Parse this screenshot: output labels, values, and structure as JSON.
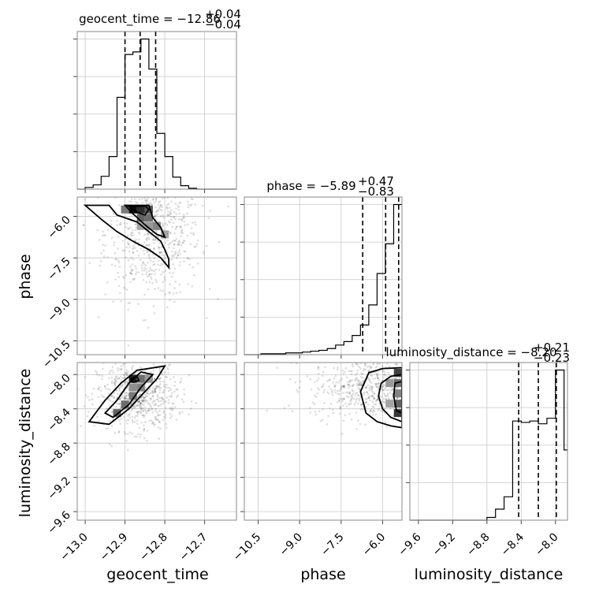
{
  "chart_data": {
    "type": "corner",
    "parameters": [
      "geocent_time",
      "phase",
      "luminosity_distance"
    ],
    "diagonal": [
      {
        "param": "geocent_time",
        "title_name": "geocent_time",
        "median": "−12.86",
        "plus": "+0.04",
        "minus": "−0.04",
        "quantiles": [
          -12.9,
          -12.862,
          -12.823
        ],
        "xlim": [
          -13.02,
          -12.62
        ],
        "bin_edges": [
          -13.02,
          -13.0,
          -12.98,
          -12.96,
          -12.94,
          -12.92,
          -12.9,
          -12.88,
          -12.86,
          -12.84,
          -12.82,
          -12.8,
          -12.78,
          -12.76,
          -12.74,
          -12.72,
          -12.7,
          -12.68,
          -12.66,
          -12.64,
          -12.62
        ],
        "counts": [
          0,
          2,
          5,
          15,
          38,
          107,
          157,
          160,
          175,
          140,
          65,
          38,
          14,
          4,
          1,
          0,
          0,
          0,
          0,
          0
        ]
      },
      {
        "param": "phase",
        "title_name": "phase",
        "median": "−5.89",
        "plus": "+0.47",
        "minus": "−0.83",
        "quantiles": [
          -6.72,
          -5.89,
          -5.42
        ],
        "xlim": [
          -11.0,
          -5.3
        ],
        "bin_edges": [
          -11.0,
          -10.7,
          -10.4,
          -10.1,
          -9.8,
          -9.5,
          -9.2,
          -8.9,
          -8.6,
          -8.3,
          -8.0,
          -7.7,
          -7.4,
          -7.1,
          -6.8,
          -6.5,
          -6.2,
          -5.9,
          -5.6,
          -5.3
        ],
        "counts": [
          0,
          0,
          1,
          1,
          1,
          2,
          2,
          3,
          4,
          5,
          7,
          11,
          15,
          22,
          34,
          57,
          93,
          127,
          172
        ]
      },
      {
        "param": "luminosity_distance",
        "title_name": "luminosity_distance",
        "median": "−8.20",
        "plus": "+0.21",
        "minus": "−0.23",
        "quantiles": [
          -8.43,
          -8.2,
          -7.99
        ],
        "xlim": [
          -9.7,
          -7.86
        ],
        "bin_edges": [
          -9.7,
          -9.6,
          -9.5,
          -9.4,
          -9.3,
          -9.2,
          -9.1,
          -9.0,
          -8.9,
          -8.8,
          -8.7,
          -8.6,
          -8.5,
          -8.4,
          -8.3,
          -8.2,
          -8.1,
          -8.0,
          -7.9,
          -7.86
        ],
        "counts": [
          0,
          0,
          0,
          0,
          0,
          0,
          0,
          0,
          0,
          2,
          8,
          17,
          72,
          71,
          72,
          70,
          74,
          109,
          51
        ]
      }
    ],
    "axes": {
      "geocent_time": {
        "ticks": [
          -13.0,
          -12.9,
          -12.8,
          -12.7
        ],
        "labels": [
          "−13.0",
          "−12.9",
          "−12.8",
          "−12.7"
        ]
      },
      "phase": {
        "ticks": [
          -10.5,
          -9.0,
          -7.5,
          -6.0
        ],
        "labels": [
          "−10.5",
          "−9.0",
          "−7.5",
          "−6.0"
        ]
      },
      "luminosity_distance": {
        "ticks": [
          -9.6,
          -9.2,
          -8.8,
          -8.4,
          -8.0
        ],
        "labels": [
          "−9.6",
          "−9.2",
          "−8.8",
          "−8.4",
          "−8.0"
        ]
      }
    },
    "panel_ylim": {
      "phase": [
        -11.0,
        -5.3
      ],
      "luminosity_distance": [
        -9.7,
        -7.86
      ]
    },
    "pairs": [
      {
        "x": "geocent_time",
        "y": "phase",
        "density_cells": [
          {
            "x": -12.88,
            "y": -5.75,
            "v": 1.0
          },
          {
            "x": -12.86,
            "y": -5.75,
            "v": 0.85
          },
          {
            "x": -12.84,
            "y": -5.75,
            "v": 0.65
          },
          {
            "x": -12.9,
            "y": -5.75,
            "v": 0.5
          },
          {
            "x": -12.86,
            "y": -6.05,
            "v": 0.6
          },
          {
            "x": -12.84,
            "y": -6.05,
            "v": 0.55
          },
          {
            "x": -12.82,
            "y": -6.35,
            "v": 0.45
          },
          {
            "x": -12.84,
            "y": -6.35,
            "v": 0.35
          },
          {
            "x": -12.8,
            "y": -6.65,
            "v": 0.3
          },
          {
            "x": -12.86,
            "y": -6.35,
            "v": 0.3
          }
        ],
        "contours": [
          [
            [
              -12.94,
              -5.6
            ],
            [
              -12.92,
              -5.95
            ],
            [
              -12.87,
              -6.2
            ],
            [
              -12.84,
              -6.55
            ],
            [
              -12.81,
              -6.9
            ],
            [
              -12.8,
              -7.2
            ],
            [
              -12.79,
              -7.55
            ],
            [
              -12.79,
              -7.85
            ],
            [
              -12.81,
              -7.5
            ],
            [
              -12.84,
              -7.2
            ],
            [
              -12.88,
              -6.9
            ],
            [
              -12.92,
              -6.55
            ],
            [
              -12.96,
              -6.1
            ],
            [
              -13.0,
              -5.6
            ]
          ],
          [
            [
              -12.9,
              -5.6
            ],
            [
              -12.88,
              -5.9
            ],
            [
              -12.85,
              -6.3
            ],
            [
              -12.82,
              -6.65
            ],
            [
              -12.8,
              -6.75
            ],
            [
              -12.81,
              -6.4
            ],
            [
              -12.83,
              -6.05
            ],
            [
              -12.84,
              -5.6
            ]
          ],
          [
            [
              -12.89,
              -5.65
            ],
            [
              -12.87,
              -5.85
            ],
            [
              -12.85,
              -5.95
            ],
            [
              -12.84,
              -5.75
            ],
            [
              -12.85,
              -5.62
            ]
          ]
        ],
        "scatter_center": [
          -12.83,
          -6.6
        ],
        "scatter_spread": [
          0.06,
          1.2
        ]
      },
      {
        "x": "geocent_time",
        "y": "luminosity_distance",
        "density_cells": [
          {
            "x": -12.88,
            "y": -8.05,
            "v": 0.9
          },
          {
            "x": -12.86,
            "y": -8.05,
            "v": 0.55
          },
          {
            "x": -12.86,
            "y": -8.15,
            "v": 0.45
          },
          {
            "x": -12.88,
            "y": -8.15,
            "v": 0.4
          },
          {
            "x": -12.88,
            "y": -8.25,
            "v": 0.5
          },
          {
            "x": -12.9,
            "y": -8.35,
            "v": 0.55
          },
          {
            "x": -12.92,
            "y": -8.45,
            "v": 0.6
          },
          {
            "x": -12.84,
            "y": -8.05,
            "v": 0.35
          }
        ],
        "contours": [
          [
            [
              -12.99,
              -8.55
            ],
            [
              -12.95,
              -8.3
            ],
            [
              -12.91,
              -8.1
            ],
            [
              -12.87,
              -7.95
            ],
            [
              -12.8,
              -7.9
            ],
            [
              -12.82,
              -8.05
            ],
            [
              -12.85,
              -8.2
            ],
            [
              -12.89,
              -8.4
            ],
            [
              -12.94,
              -8.58
            ]
          ],
          [
            [
              -12.95,
              -8.45
            ],
            [
              -12.92,
              -8.3
            ],
            [
              -12.89,
              -8.1
            ],
            [
              -12.86,
              -7.97
            ],
            [
              -12.83,
              -8.0
            ],
            [
              -12.86,
              -8.15
            ],
            [
              -12.89,
              -8.35
            ],
            [
              -12.93,
              -8.5
            ]
          ],
          [
            [
              -12.885,
              -8.05
            ],
            [
              -12.87,
              -8.02
            ],
            [
              -12.865,
              -8.07
            ],
            [
              -12.88,
              -8.09
            ]
          ]
        ],
        "scatter_center": [
          -12.87,
          -8.25
        ],
        "scatter_spread": [
          0.05,
          0.2
        ]
      },
      {
        "x": "phase",
        "y": "luminosity_distance",
        "density_cells": [
          {
            "x": -5.45,
            "y": -7.98,
            "v": 0.75
          },
          {
            "x": -5.45,
            "y": -8.1,
            "v": 0.55
          },
          {
            "x": -5.45,
            "y": -8.22,
            "v": 0.45
          },
          {
            "x": -5.45,
            "y": -8.34,
            "v": 0.6
          },
          {
            "x": -5.45,
            "y": -8.45,
            "v": 0.8
          },
          {
            "x": -5.75,
            "y": -8.1,
            "v": 0.35
          },
          {
            "x": -5.75,
            "y": -8.34,
            "v": 0.3
          }
        ],
        "contours": [
          [
            [
              -5.3,
              -7.92
            ],
            [
              -6.0,
              -7.93
            ],
            [
              -6.5,
              -7.98
            ],
            [
              -6.8,
              -8.2
            ],
            [
              -6.6,
              -8.45
            ],
            [
              -6.2,
              -8.55
            ],
            [
              -5.7,
              -8.6
            ],
            [
              -5.3,
              -8.62
            ]
          ],
          [
            [
              -5.3,
              -8.0
            ],
            [
              -5.7,
              -8.02
            ],
            [
              -6.05,
              -8.1
            ],
            [
              -6.15,
              -8.25
            ],
            [
              -6.0,
              -8.4
            ],
            [
              -5.7,
              -8.5
            ],
            [
              -5.3,
              -8.55
            ]
          ],
          [
            [
              -5.3,
              -8.08
            ],
            [
              -5.55,
              -8.1
            ],
            [
              -5.6,
              -8.25
            ],
            [
              -5.5,
              -8.42
            ],
            [
              -5.3,
              -8.45
            ]
          ]
        ],
        "scatter_center": [
          -6.2,
          -8.15
        ],
        "scatter_spread": [
          1.2,
          0.18
        ]
      }
    ]
  }
}
